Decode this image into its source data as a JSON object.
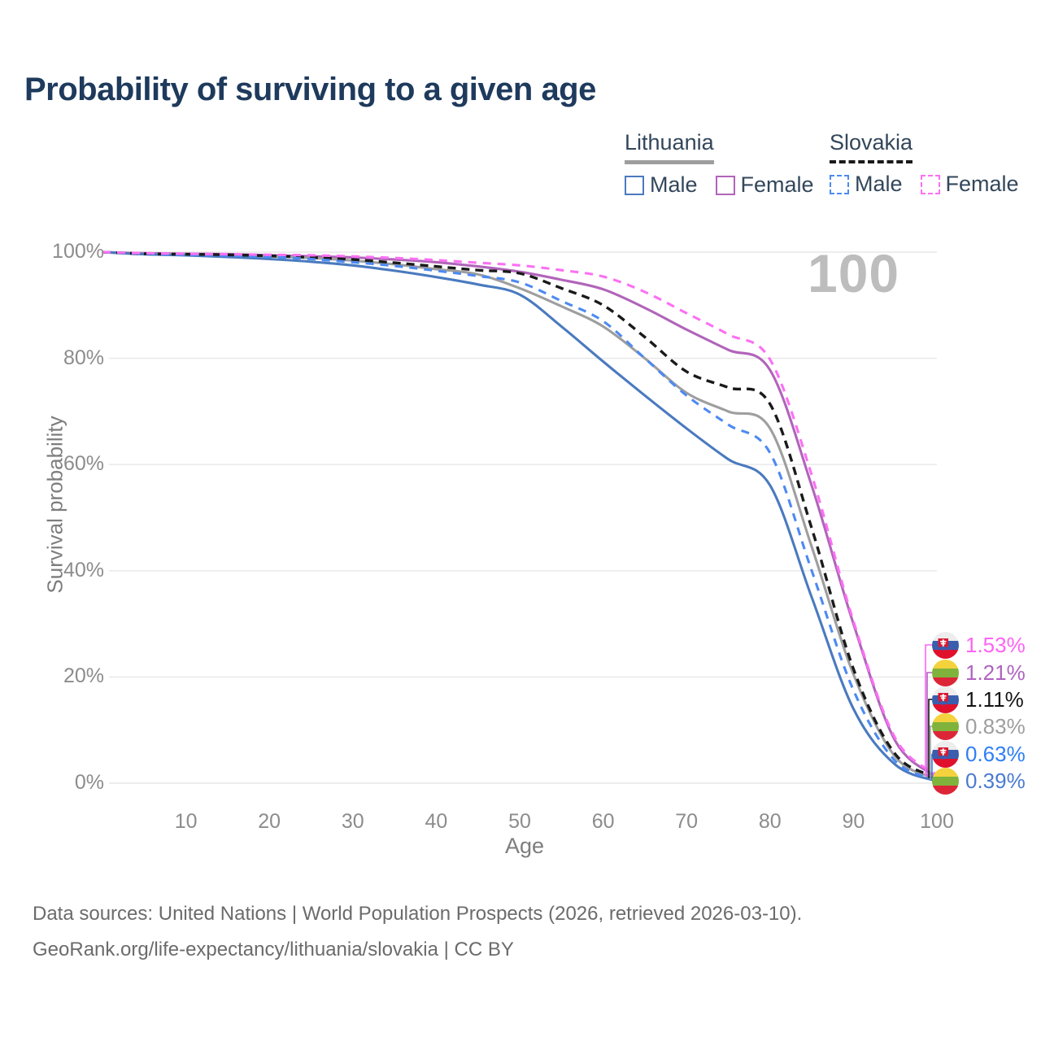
{
  "title": "Probability of surviving to a given age",
  "watermark_age": "100",
  "legend": {
    "groups": [
      {
        "label": "Lithuania",
        "underline_style": "solid",
        "underline_color": "#9e9e9e",
        "items": [
          {
            "label": "Male",
            "color": "#4a7abf",
            "dashed": false
          },
          {
            "label": "Female",
            "color": "#b164ba",
            "dashed": false
          }
        ]
      },
      {
        "label": "Slovakia",
        "underline_style": "dashed",
        "underline_color": "#1a1a1a",
        "items": [
          {
            "label": "Male",
            "color": "#4d8af2",
            "dashed": true
          },
          {
            "label": "Female",
            "color": "#fb70f3",
            "dashed": true
          }
        ]
      }
    ]
  },
  "axes": {
    "y_title": "Survival probability",
    "x_title": "Age",
    "y_ticks": [
      "100%",
      "80%",
      "60%",
      "40%",
      "20%",
      "0%"
    ],
    "x_ticks": [
      10,
      20,
      30,
      40,
      50,
      60,
      70,
      80,
      90,
      100
    ]
  },
  "chart_data": {
    "type": "line",
    "title": "Probability of surviving to a given age",
    "xlabel": "Age",
    "ylabel": "Survival probability",
    "xlim": [
      0,
      100
    ],
    "ylim": [
      0,
      100
    ],
    "grid": "horizontal-only",
    "legend_position": "top-right",
    "x": [
      0,
      5,
      10,
      15,
      20,
      25,
      30,
      35,
      40,
      45,
      50,
      55,
      60,
      65,
      70,
      75,
      80,
      85,
      90,
      95,
      100
    ],
    "series": [
      {
        "name": "Lithuania Female",
        "country": "Lithuania",
        "sex": "Female",
        "color": "#b164ba",
        "dashed": false,
        "values": [
          100,
          99.8,
          99.7,
          99.6,
          99.4,
          99.2,
          99.0,
          98.6,
          98.1,
          97.3,
          96.3,
          94.8,
          93.0,
          89.5,
          85.4,
          81.6,
          77.8,
          56.0,
          30.0,
          8.0,
          1.21
        ]
      },
      {
        "name": "Lithuania Total",
        "country": "Lithuania",
        "sex": "Both",
        "color": "#9e9e9e",
        "dashed": false,
        "values": [
          100,
          99.7,
          99.6,
          99.4,
          99.2,
          98.9,
          98.4,
          97.7,
          96.8,
          95.8,
          93.2,
          89.8,
          86.0,
          80.0,
          73.5,
          70.0,
          66.8,
          44.5,
          20.5,
          5.0,
          0.83
        ]
      },
      {
        "name": "Lithuania Male",
        "country": "Lithuania",
        "sex": "Male",
        "color": "#4a7abf",
        "dashed": false,
        "values": [
          100,
          99.6,
          99.4,
          99.1,
          98.7,
          98.2,
          97.5,
          96.5,
          95.3,
          93.9,
          92.0,
          86.0,
          79.4,
          73.0,
          66.8,
          61.0,
          56.1,
          35.0,
          14.0,
          3.5,
          0.39
        ]
      },
      {
        "name": "Slovakia Total",
        "country": "Slovakia",
        "sex": "Both",
        "color": "#1a1a1a",
        "dashed": true,
        "values": [
          100,
          99.7,
          99.6,
          99.5,
          99.3,
          99.0,
          98.6,
          98.0,
          97.3,
          96.6,
          96.0,
          93.2,
          90.0,
          84.0,
          77.5,
          74.5,
          71.4,
          48.0,
          21.5,
          5.5,
          1.11
        ]
      },
      {
        "name": "Slovakia Male",
        "country": "Slovakia",
        "sex": "Male",
        "color": "#4d8af2",
        "dashed": true,
        "values": [
          100,
          99.7,
          99.5,
          99.3,
          99.1,
          98.7,
          98.1,
          97.4,
          96.5,
          95.5,
          94.3,
          90.8,
          87.0,
          80.0,
          73.0,
          67.5,
          62.2,
          40.0,
          17.5,
          4.2,
          0.63
        ]
      },
      {
        "name": "Slovakia Female",
        "country": "Slovakia",
        "sex": "Female",
        "color": "#fb70f3",
        "dashed": true,
        "values": [
          100,
          99.8,
          99.7,
          99.6,
          99.5,
          99.4,
          99.2,
          98.9,
          98.5,
          98.0,
          97.5,
          96.6,
          95.4,
          92.5,
          88.5,
          84.5,
          79.8,
          58.0,
          30.5,
          8.5,
          1.53
        ]
      }
    ]
  },
  "end_labels": [
    {
      "value": "1.53%",
      "color": "#ff63f3",
      "flag": "slovakia",
      "series": "Slovakia Female"
    },
    {
      "value": "1.21%",
      "color": "#af63c0",
      "flag": "lithuania",
      "series": "Lithuania Female"
    },
    {
      "value": "1.11%",
      "color": "#141414",
      "flag": "slovakia",
      "series": "Slovakia Total"
    },
    {
      "value": "0.83%",
      "color": "#9e9e9e",
      "flag": "lithuania",
      "series": "Lithuania Total"
    },
    {
      "value": "0.63%",
      "color": "#2e7ef5",
      "flag": "slovakia",
      "series": "Slovakia Male"
    },
    {
      "value": "0.39%",
      "color": "#4a7bd0",
      "flag": "lithuania",
      "series": "Lithuania Male"
    }
  ],
  "flag_colors": {
    "lithuania": {
      "top": "#f4d23d",
      "middle": "#7fb33c",
      "bottom": "#dc2638"
    },
    "slovakia": {
      "top": "#ededed",
      "middle": "#3a5dad",
      "bottom": "#e0112d",
      "shield": "#d81931",
      "cross": "#ffffff"
    }
  },
  "footer": {
    "line1": "Data sources: United Nations | World Population Prospects (2026, retrieved 2026-03-10).",
    "line2": "GeoRank.org/life-expectancy/lithuania/slovakia | CC BY"
  }
}
